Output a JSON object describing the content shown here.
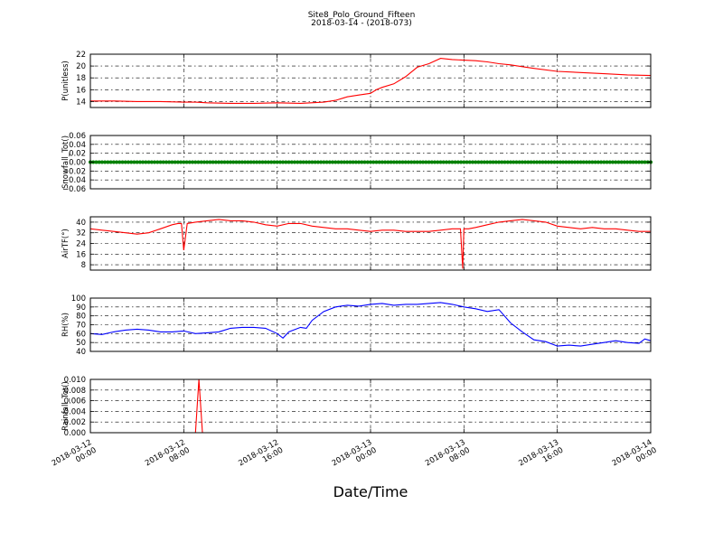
{
  "figure": {
    "title": "Site8_Polo_Ground_Fifteen",
    "subtitle": "2018-03-14 - (2018-073)",
    "xlabel": "Date/Time"
  },
  "chart_data": [
    {
      "type": "line",
      "ylabel": "P(unitless)",
      "ylim": [
        13,
        22
      ],
      "yticks": [
        "14",
        "16",
        "18",
        "20",
        "22"
      ],
      "xticks": [
        "2018-03-12\n00:00",
        "2018-03-12\n08:00",
        "2018-03-12\n16:00",
        "2018-03-13\n00:00",
        "2018-03-13\n08:00",
        "2018-03-13\n16:00",
        "2018-03-14\n00:00"
      ],
      "xunit": "hours since 2018-03-12 00:00",
      "xlim": [
        0,
        48
      ],
      "grid": true,
      "series": [
        {
          "color": "#ff0000",
          "x": [
            0,
            2,
            4,
            6,
            8,
            9,
            10,
            12,
            14,
            16,
            18,
            20,
            21,
            22,
            23,
            24,
            24.5,
            25,
            26,
            27,
            28,
            29,
            30,
            31,
            32,
            33,
            34,
            35,
            36,
            37,
            38,
            40,
            42,
            44,
            46,
            48
          ],
          "y": [
            14.1,
            14.1,
            14.0,
            14.0,
            13.9,
            13.9,
            13.8,
            13.7,
            13.7,
            13.8,
            13.7,
            13.9,
            14.2,
            14.8,
            15.1,
            15.4,
            16.0,
            16.4,
            17.0,
            18.2,
            19.8,
            20.4,
            21.3,
            21.1,
            21.0,
            20.9,
            20.7,
            20.4,
            20.2,
            19.9,
            19.6,
            19.1,
            18.9,
            18.7,
            18.5,
            18.4
          ]
        }
      ]
    },
    {
      "type": "scatter",
      "ylabel": "Snowfall_Tot()",
      "ylim": [
        -0.06,
        0.06
      ],
      "yticks": [
        "0.06",
        "0.04",
        "0.02",
        "0.00",
        "−0.02",
        "−0.04",
        "−0.06"
      ],
      "xlim": [
        0,
        48
      ],
      "grid": true,
      "series": [
        {
          "color": "#008000",
          "x_range": [
            0,
            48
          ],
          "y": 0.0
        }
      ]
    },
    {
      "type": "line",
      "ylabel": "AirTF(°)",
      "ylim": [
        4,
        44
      ],
      "yticks": [
        "40",
        "32",
        "24",
        "16",
        "8"
      ],
      "xlim": [
        0,
        48
      ],
      "grid": true,
      "series": [
        {
          "color": "#ff0000",
          "x": [
            0,
            1,
            2,
            3,
            4,
            5,
            6,
            7,
            7.5,
            7.8,
            8.0,
            8.3,
            9,
            10,
            11,
            12,
            13,
            14,
            15,
            16,
            17,
            18,
            19,
            20,
            21,
            22,
            23,
            24,
            25,
            26,
            27,
            28,
            29,
            30,
            31,
            31.7,
            31.9,
            32.0,
            32.4,
            33,
            34,
            35,
            36,
            37,
            38,
            39,
            40,
            41,
            42,
            43,
            44,
            45,
            46,
            47,
            48
          ],
          "y": [
            35,
            34,
            33,
            32,
            31,
            32,
            35,
            38,
            39,
            39,
            19,
            39,
            40,
            41,
            42,
            41,
            41,
            40,
            38,
            37,
            39,
            39,
            37,
            36,
            35,
            35,
            34,
            33,
            34,
            34,
            33,
            33,
            33,
            34,
            35,
            35,
            5,
            35,
            35,
            36,
            38,
            40,
            41,
            42,
            41,
            40,
            37,
            36,
            35,
            36,
            35,
            35,
            34,
            33,
            33
          ]
        }
      ]
    },
    {
      "type": "line",
      "ylabel": "RH(%)",
      "ylim": [
        40,
        100
      ],
      "yticks": [
        "100",
        "90",
        "80",
        "70",
        "60",
        "50",
        "40"
      ],
      "xlim": [
        0,
        48
      ],
      "grid": true,
      "series": [
        {
          "color": "#0000ff",
          "x": [
            0,
            1,
            2,
            3,
            4,
            5,
            6,
            7,
            8,
            9,
            10,
            11,
            12,
            13,
            14,
            15,
            16,
            16.5,
            17,
            18,
            18.5,
            19,
            20,
            21,
            22,
            23,
            24,
            25,
            26,
            27,
            28,
            29,
            30,
            31,
            32,
            33,
            34,
            35,
            36,
            37,
            38,
            39,
            40,
            41,
            42,
            43,
            44,
            45,
            46,
            47,
            47.5,
            48
          ],
          "y": [
            60,
            59,
            62,
            64,
            65,
            64,
            62,
            62,
            63,
            60,
            61,
            62,
            66,
            67,
            67,
            66,
            60,
            55,
            62,
            67,
            66,
            75,
            85,
            90,
            92,
            91,
            93,
            94,
            92,
            93,
            93,
            94,
            95,
            93,
            90,
            88,
            85,
            87,
            72,
            62,
            53,
            51,
            46,
            47,
            46,
            48,
            50,
            52,
            50,
            49,
            54,
            52
          ]
        }
      ]
    },
    {
      "type": "line",
      "ylabel": "Rainfall_Tot()",
      "ylim": [
        0,
        0.01
      ],
      "yticks": [
        "0.010",
        "0.008",
        "0.006",
        "0.004",
        "0.002",
        "0.000"
      ],
      "xlim": [
        0,
        48
      ],
      "grid": true,
      "series": [
        {
          "color": "#ff0000",
          "x": [
            0,
            9.0,
            9.3,
            9.6,
            48
          ],
          "y": [
            0,
            0,
            0.01,
            0,
            0
          ]
        }
      ]
    }
  ]
}
